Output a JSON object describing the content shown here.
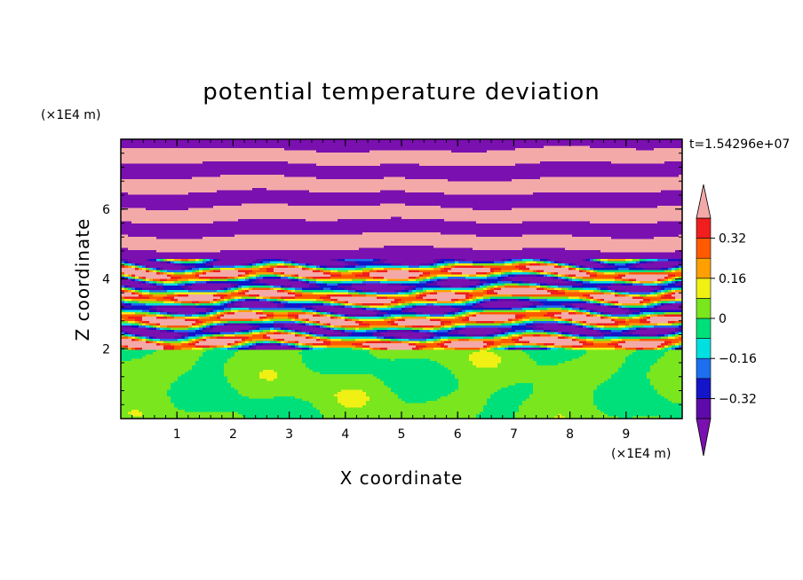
{
  "chart_data": {
    "type": "heatmap",
    "title": "potential temperature deviation",
    "xlabel": "X coordinate",
    "ylabel": "Z coordinate",
    "x_unit": "(×1E4 m)",
    "y_unit": "(×1E4 m)",
    "time_label": "t=1.54296e+07",
    "xlim": [
      0,
      10
    ],
    "ylim": [
      0,
      8
    ],
    "x_ticks": [
      1,
      2,
      3,
      4,
      5,
      6,
      7,
      8,
      9
    ],
    "y_ticks": [
      2,
      4,
      6
    ],
    "colorbar": {
      "levels": [
        -0.4,
        -0.32,
        -0.24,
        -0.16,
        -0.08,
        0,
        0.08,
        0.16,
        0.24,
        0.32,
        0.4
      ],
      "tick_values": [
        0.32,
        0.16,
        0,
        -0.16,
        -0.32
      ],
      "tick_labels": [
        "0.32",
        "0.16",
        "0",
        "−0.16",
        "−0.32"
      ],
      "over_color": "#f4a9a9",
      "under_color": "#7a10b0",
      "colors": [
        "#5e0aa8",
        "#1414c8",
        "#1e6ef0",
        "#00e0e0",
        "#00e07a",
        "#7ae61e",
        "#f0f014",
        "#ffa000",
        "#ff5a00",
        "#f01e1e"
      ]
    },
    "layers": [
      {
        "z_range": [
          0,
          2
        ],
        "description_value": "≈ -0.04 to 0.04 (green/teal mix)"
      },
      {
        "z_range": [
          2,
          4.6
        ],
        "description_value": "mixed layer, -0.4 to 0.4"
      },
      {
        "z_range": [
          4.6,
          8
        ],
        "description_value": "alternating bands > 0.4 and < -0.4"
      }
    ]
  }
}
